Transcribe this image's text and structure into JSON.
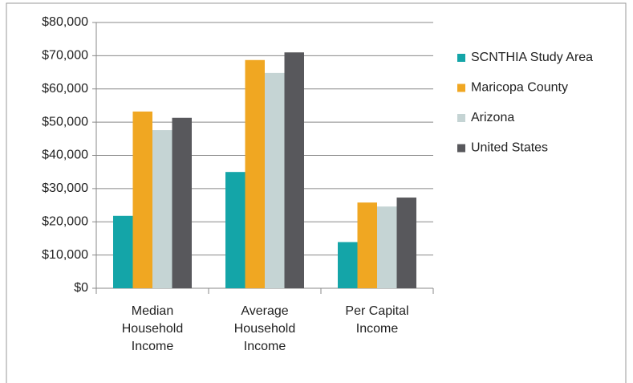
{
  "chart_data": {
    "type": "bar",
    "categories": [
      "Median Household Income",
      "Average Household Income",
      "Per Capital Income"
    ],
    "series": [
      {
        "name": "SCNTHIA Study Area",
        "color": "#14a5a8",
        "values": [
          21800,
          35000,
          13900
        ]
      },
      {
        "name": "Maricopa County",
        "color": "#f0a722",
        "values": [
          53200,
          68700,
          25800
        ]
      },
      {
        "name": "Arizona",
        "color": "#c5d4d4",
        "values": [
          47600,
          64800,
          24600
        ]
      },
      {
        "name": "United States",
        "color": "#58585c",
        "values": [
          51300,
          71000,
          27300
        ]
      }
    ],
    "ylim": [
      0,
      80000
    ],
    "yticks": [
      {
        "value": 0,
        "label": "$0"
      },
      {
        "value": 10000,
        "label": "$10,000"
      },
      {
        "value": 20000,
        "label": "$20,000"
      },
      {
        "value": 30000,
        "label": "$30,000"
      },
      {
        "value": 40000,
        "label": "$40,000"
      },
      {
        "value": 50000,
        "label": "$50,000"
      },
      {
        "value": 60000,
        "label": "$60,000"
      },
      {
        "value": 70000,
        "label": "$70,000"
      },
      {
        "value": 80000,
        "label": "$80,000"
      }
    ],
    "grid": true,
    "legend": "right"
  }
}
